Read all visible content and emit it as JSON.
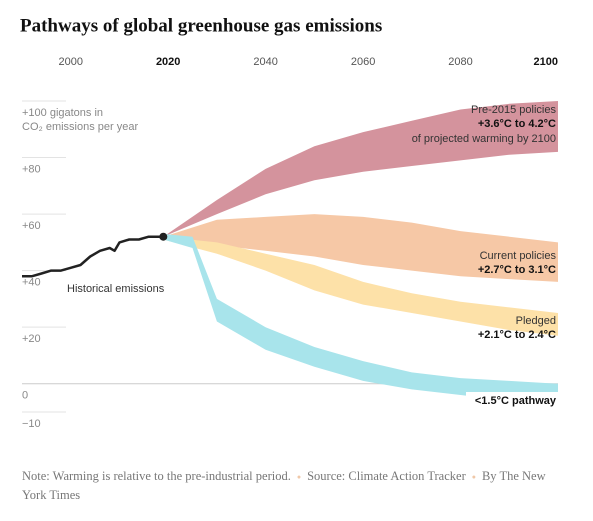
{
  "chart_data": {
    "type": "area",
    "title": "Pathways of global greenhouse gas emissions",
    "y_label": "CO₂ emissions per year",
    "xlim": [
      1990,
      2100
    ],
    "xticks": [
      2000,
      2020,
      2040,
      2060,
      2080,
      2100
    ],
    "ylim": [
      -10,
      100
    ],
    "yticks": [
      {
        "value": 100,
        "label": "+100 gigatons in"
      },
      {
        "value": 80,
        "label": "+80"
      },
      {
        "value": 60,
        "label": "+60"
      },
      {
        "value": 40,
        "label": "+40"
      },
      {
        "value": 20,
        "label": "+20"
      },
      0,
      {
        "value": -10,
        "label": "−10"
      }
    ],
    "grid": true,
    "series": [
      {
        "name": "Pre-2015 policies",
        "range_label": "+3.6°C to 4.2°C",
        "note": "of projected warming by 2100",
        "color": "#d4939d",
        "x": [
          2019,
          2030,
          2040,
          2050,
          2060,
          2070,
          2080,
          2090,
          2100
        ],
        "upper": [
          52,
          65,
          76,
          84,
          89,
          93,
          97,
          99,
          100
        ],
        "lower": [
          52,
          60,
          67,
          72,
          75,
          77,
          79,
          81,
          82
        ]
      },
      {
        "name": "Current policies",
        "range_label": "+2.7°C to 3.1°C",
        "color": "#f6c8a6",
        "x": [
          2019,
          2030,
          2040,
          2050,
          2060,
          2070,
          2080,
          2090,
          2100
        ],
        "upper": [
          52,
          58,
          59,
          60,
          59,
          57,
          54,
          52,
          50
        ],
        "lower": [
          51,
          49,
          47,
          45,
          42,
          40,
          38,
          37,
          36
        ]
      },
      {
        "name": "Pledged",
        "range_label": "+2.1°C to 2.4°C",
        "color": "#fde1a8",
        "x": [
          2019,
          2030,
          2040,
          2050,
          2060,
          2070,
          2080,
          2090,
          2100
        ],
        "upper": [
          52,
          50,
          46,
          42,
          36,
          32,
          29,
          27,
          25
        ],
        "lower": [
          51,
          46,
          40,
          33,
          28,
          25,
          22,
          19,
          17
        ]
      },
      {
        "name": "<1.5°C pathway",
        "color": "#a8e4eb",
        "x": [
          2019,
          2025,
          2030,
          2040,
          2050,
          2060,
          2070,
          2080,
          2090,
          2100
        ],
        "upper": [
          53,
          52,
          30,
          20,
          13,
          8,
          4,
          2,
          1,
          0
        ],
        "lower": [
          51,
          48,
          22,
          12,
          6,
          1,
          -2,
          -4,
          -6,
          -8
        ]
      },
      {
        "name": "Historical emissions",
        "color": "#222222",
        "x": [
          1990,
          1992,
          1994,
          1996,
          1998,
          2000,
          2002,
          2004,
          2006,
          2008,
          2009,
          2010,
          2012,
          2014,
          2016,
          2019
        ],
        "values": [
          38,
          38,
          39,
          40,
          40,
          41,
          42,
          45,
          47,
          48,
          47,
          50,
          51,
          51,
          52,
          52
        ]
      }
    ],
    "footnotes": [
      "Note: Warming is relative to the pre-industrial period.",
      "Source: Climate Action Tracker",
      "By The New York Times"
    ]
  }
}
